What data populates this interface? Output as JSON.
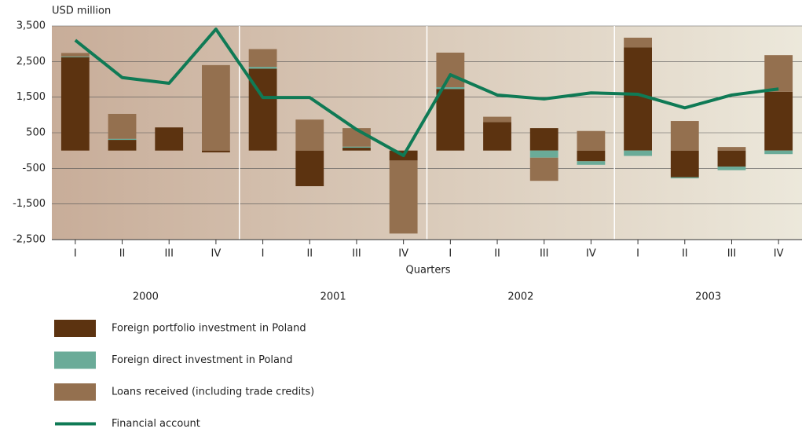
{
  "chart_data": {
    "type": "bar",
    "y_axis_label": "USD million",
    "x_axis_label": "Quarters",
    "categories": [
      "I",
      "II",
      "III",
      "IV",
      "I",
      "II",
      "III",
      "IV",
      "I",
      "II",
      "III",
      "IV",
      "I",
      "II",
      "III",
      "IV"
    ],
    "years": [
      "2000",
      "2001",
      "2002",
      "2003"
    ],
    "ylim": [
      -2500,
      3500
    ],
    "yticks": [
      {
        "value": -2500,
        "label": "-2,500"
      },
      {
        "value": -1500,
        "label": "-1,500"
      },
      -500,
      500,
      {
        "value": 1500,
        "label": "1,500"
      },
      {
        "value": 2500,
        "label": "2,500"
      },
      {
        "value": 3500,
        "label": "3,500"
      }
    ],
    "grid": true,
    "legend": "bottom",
    "series": [
      {
        "name": "Foreign portfolio investment in Poland",
        "color": "#5c3310",
        "type": "bar",
        "values": [
          2620,
          300,
          650,
          -50,
          2300,
          -1000,
          80,
          -280,
          1730,
          800,
          630,
          -300,
          2900,
          -750,
          -450,
          1650
        ]
      },
      {
        "name": "Foreign direct investment in Poland",
        "color": "#6aab98",
        "type": "bar",
        "values": [
          20,
          30,
          0,
          0,
          50,
          0,
          30,
          0,
          50,
          0,
          -200,
          -100,
          -150,
          -30,
          -100,
          -100
        ]
      },
      {
        "name": "Loans received (including trade credits)",
        "color": "#94704f",
        "type": "bar",
        "values": [
          100,
          700,
          0,
          2400,
          500,
          870,
          520,
          -2050,
          970,
          150,
          -650,
          550,
          270,
          830,
          100,
          1030
        ]
      },
      {
        "name": "Financial account",
        "color": "#0f7a55",
        "type": "line",
        "values": [
          3100,
          2050,
          1890,
          3410,
          1490,
          1490,
          590,
          -140,
          2130,
          1560,
          1450,
          1620,
          1580,
          1200,
          1560,
          1730
        ]
      }
    ]
  }
}
